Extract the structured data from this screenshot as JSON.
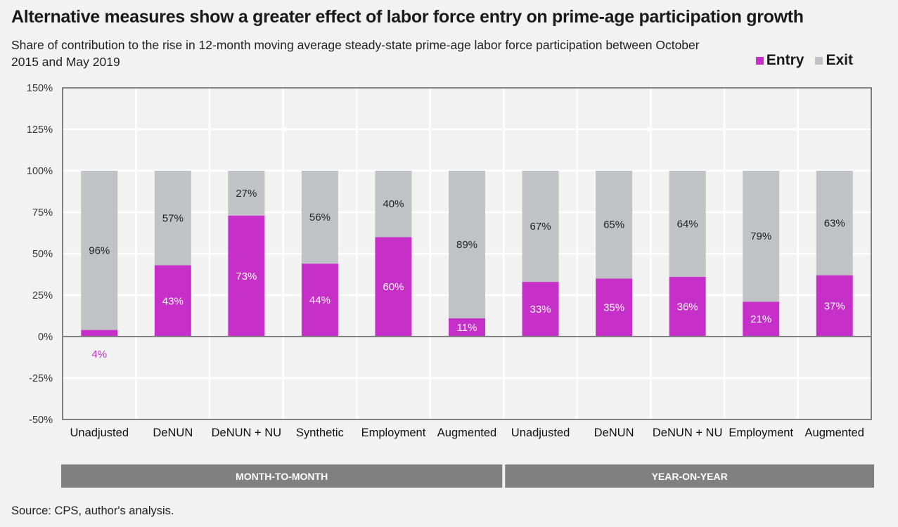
{
  "header": {
    "title": "Alternative measures show a greater effect of labor force entry on prime-age participation growth",
    "subtitle": "Share of contribution to the rise in 12-month moving average steady-state prime-age labor force participation between October 2015 and May 2019"
  },
  "legend": {
    "entry": "Entry",
    "exit": "Exit"
  },
  "footer": {
    "source": "Source: CPS, author's analysis."
  },
  "chart_data": {
    "type": "bar",
    "stacked": true,
    "title": "Alternative measures show a greater effect of labor force entry on prime-age participation growth",
    "subtitle": "Share of contribution to the rise in 12-month moving average steady-state prime-age labor force participation between October 2015 and May 2019",
    "xlabel": "",
    "ylabel": "",
    "ylim": [
      -50,
      150
    ],
    "yticks": [
      150,
      125,
      100,
      75,
      50,
      25,
      0,
      -25,
      -50
    ],
    "ytick_labels": [
      "150%",
      "125%",
      "100%",
      "75%",
      "50%",
      "25%",
      "0%",
      "-25%",
      "-50%"
    ],
    "grid": true,
    "legend_position": "top-right",
    "categories": [
      "Unadjusted",
      "DeNUN",
      "DeNUN + NU",
      "Synthetic",
      "Employment",
      "Augmented",
      "Unadjusted",
      "DeNUN",
      "DeNUN + NU",
      "Employment",
      "Augmented"
    ],
    "groups": [
      {
        "label": "MONTH-TO-MONTH",
        "start": 0,
        "end": 5
      },
      {
        "label": "YEAR-ON-YEAR",
        "start": 6,
        "end": 10
      }
    ],
    "series": [
      {
        "name": "Entry",
        "color": "#c62fc8",
        "values": [
          4,
          43,
          73,
          44,
          60,
          11,
          33,
          35,
          36,
          21,
          37
        ],
        "labels": [
          "4%",
          "43%",
          "73%",
          "44%",
          "60%",
          "11%",
          "33%",
          "35%",
          "36%",
          "21%",
          "37%"
        ]
      },
      {
        "name": "Exit",
        "color": "#c1c2c6",
        "values": [
          96,
          57,
          27,
          56,
          40,
          89,
          67,
          65,
          64,
          79,
          63
        ],
        "labels": [
          "96%",
          "57%",
          "27%",
          "56%",
          "40%",
          "89%",
          "67%",
          "65%",
          "64%",
          "79%",
          "63%"
        ]
      }
    ],
    "label_colors": {
      "entry_inside": "#ffffff",
      "entry_outside": "#c62fc8",
      "exit": "#222222"
    },
    "axis_color": "#808080",
    "gridline_color": "#ffffff",
    "group_bar_color": "#808080"
  }
}
